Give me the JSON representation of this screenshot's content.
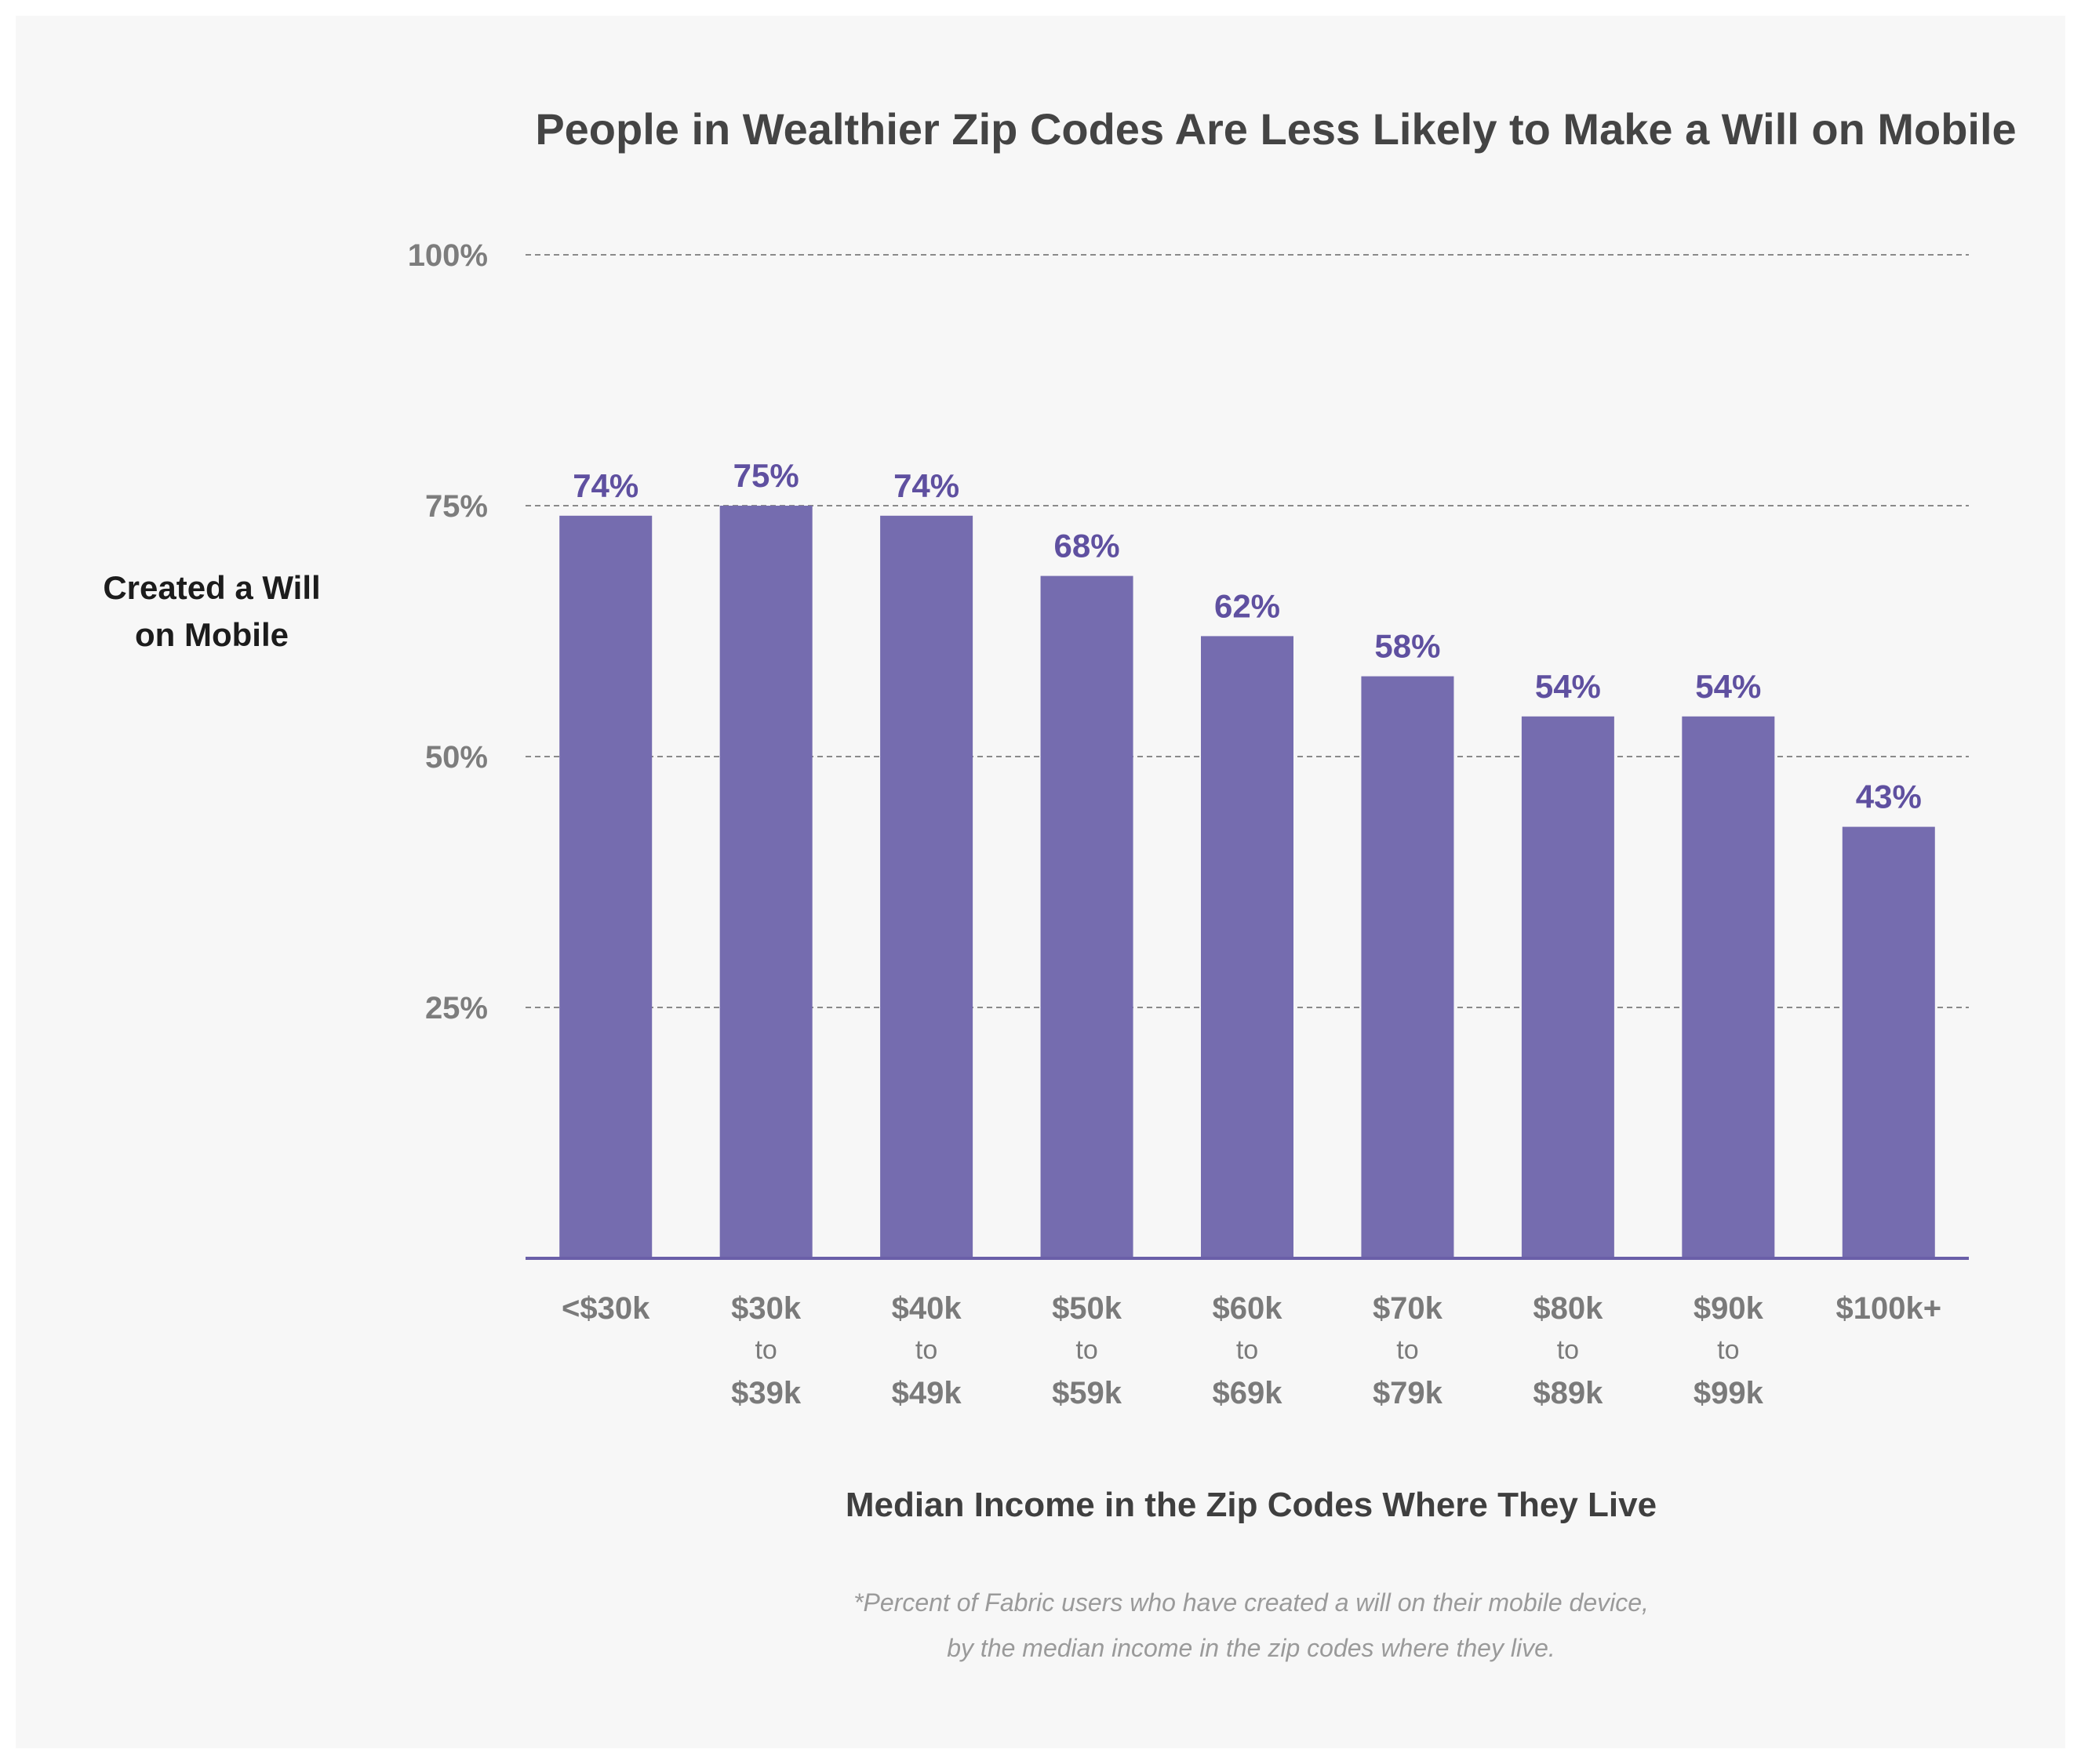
{
  "chart_data": {
    "type": "bar",
    "title": "People in Wealthier Zip Codes Are Less Likely to Make a Will on Mobile",
    "ylabel_lines": [
      "Created a Will",
      "on Mobile"
    ],
    "xlabel": "Median Income in the Zip Codes Where They Live",
    "categories": [
      [
        "<$30k"
      ],
      [
        "$30k",
        "to",
        "$39k"
      ],
      [
        "$40k",
        "to",
        "$49k"
      ],
      [
        "$50k",
        "to",
        "$59k"
      ],
      [
        "$60k",
        "to",
        "$69k"
      ],
      [
        "$70k",
        "to",
        "$79k"
      ],
      [
        "$80k",
        "to",
        "$89k"
      ],
      [
        "$90k",
        "to",
        "$99k"
      ],
      [
        "$100k+"
      ]
    ],
    "values": [
      74,
      75,
      74,
      68,
      62,
      58,
      54,
      54,
      43
    ],
    "data_labels": [
      "74%",
      "75%",
      "74%",
      "68%",
      "62%",
      "58%",
      "54%",
      "54%",
      "43%"
    ],
    "ylim": [
      0,
      100
    ],
    "yticks": [
      25,
      50,
      75,
      100
    ],
    "ytick_labels": [
      "25%",
      "50%",
      "75%",
      "100%"
    ],
    "grid": true,
    "footnote_lines": [
      "*Percent of Fabric users who have created a will on their mobile device,",
      "by the median income in the zip codes where they live."
    ]
  },
  "colors": {
    "bar": "#756caf",
    "label": "#5f50a0",
    "grid": "#8a8a8a",
    "axis": "#6a5fa8"
  }
}
